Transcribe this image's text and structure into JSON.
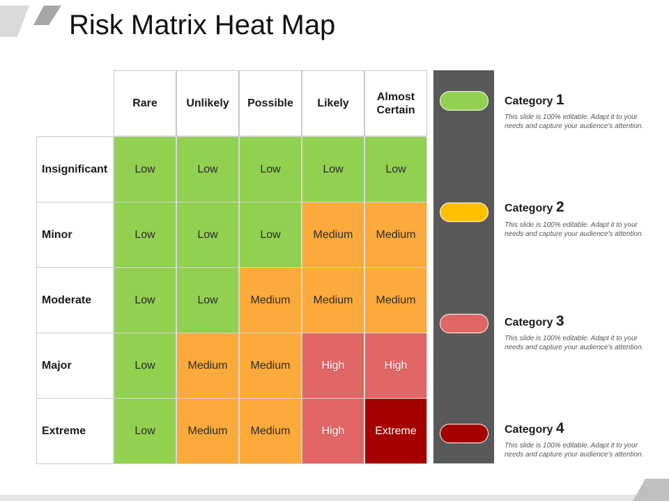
{
  "title": "Risk Matrix Heat Map",
  "columns": [
    "Rare",
    "Unlikely",
    "Possible",
    "Likely",
    "Almost Certain"
  ],
  "rows": [
    {
      "label": "Insignificant",
      "cells": [
        "Low",
        "Low",
        "Low",
        "Low",
        "Low"
      ]
    },
    {
      "label": "Minor",
      "cells": [
        "Low",
        "Low",
        "Low",
        "Medium",
        "Medium"
      ]
    },
    {
      "label": "Moderate",
      "cells": [
        "Low",
        "Low",
        "Medium",
        "Medium",
        "Medium"
      ]
    },
    {
      "label": "Major",
      "cells": [
        "Low",
        "Medium",
        "Medium",
        "High",
        "High"
      ]
    },
    {
      "label": "Extreme",
      "cells": [
        "Low",
        "Medium",
        "Medium",
        "High",
        "Extreme"
      ]
    }
  ],
  "level_colors": {
    "Low": "#92d050",
    "Medium": "#fbaa3b",
    "High": "#e06666",
    "Extreme": "#a50000"
  },
  "legend": {
    "bar_color": "#595959",
    "categories": [
      {
        "label": "Category",
        "number": "1",
        "color": "#92d050",
        "description": "This slide is 100% editable. Adapt it to your needs and capture your audience's attention."
      },
      {
        "label": "Category",
        "number": "2",
        "color": "#ffc000",
        "description": "This slide is 100% editable. Adapt it to your needs and capture your audience's attention."
      },
      {
        "label": "Category",
        "number": "3",
        "color": "#e06666",
        "description": "This slide is 100% editable. Adapt it to your needs and capture your audience's attention."
      },
      {
        "label": "Category",
        "number": "4",
        "color": "#a50000",
        "description": "This slide is 100% editable. Adapt it to your needs and capture your audience's attention."
      }
    ]
  }
}
